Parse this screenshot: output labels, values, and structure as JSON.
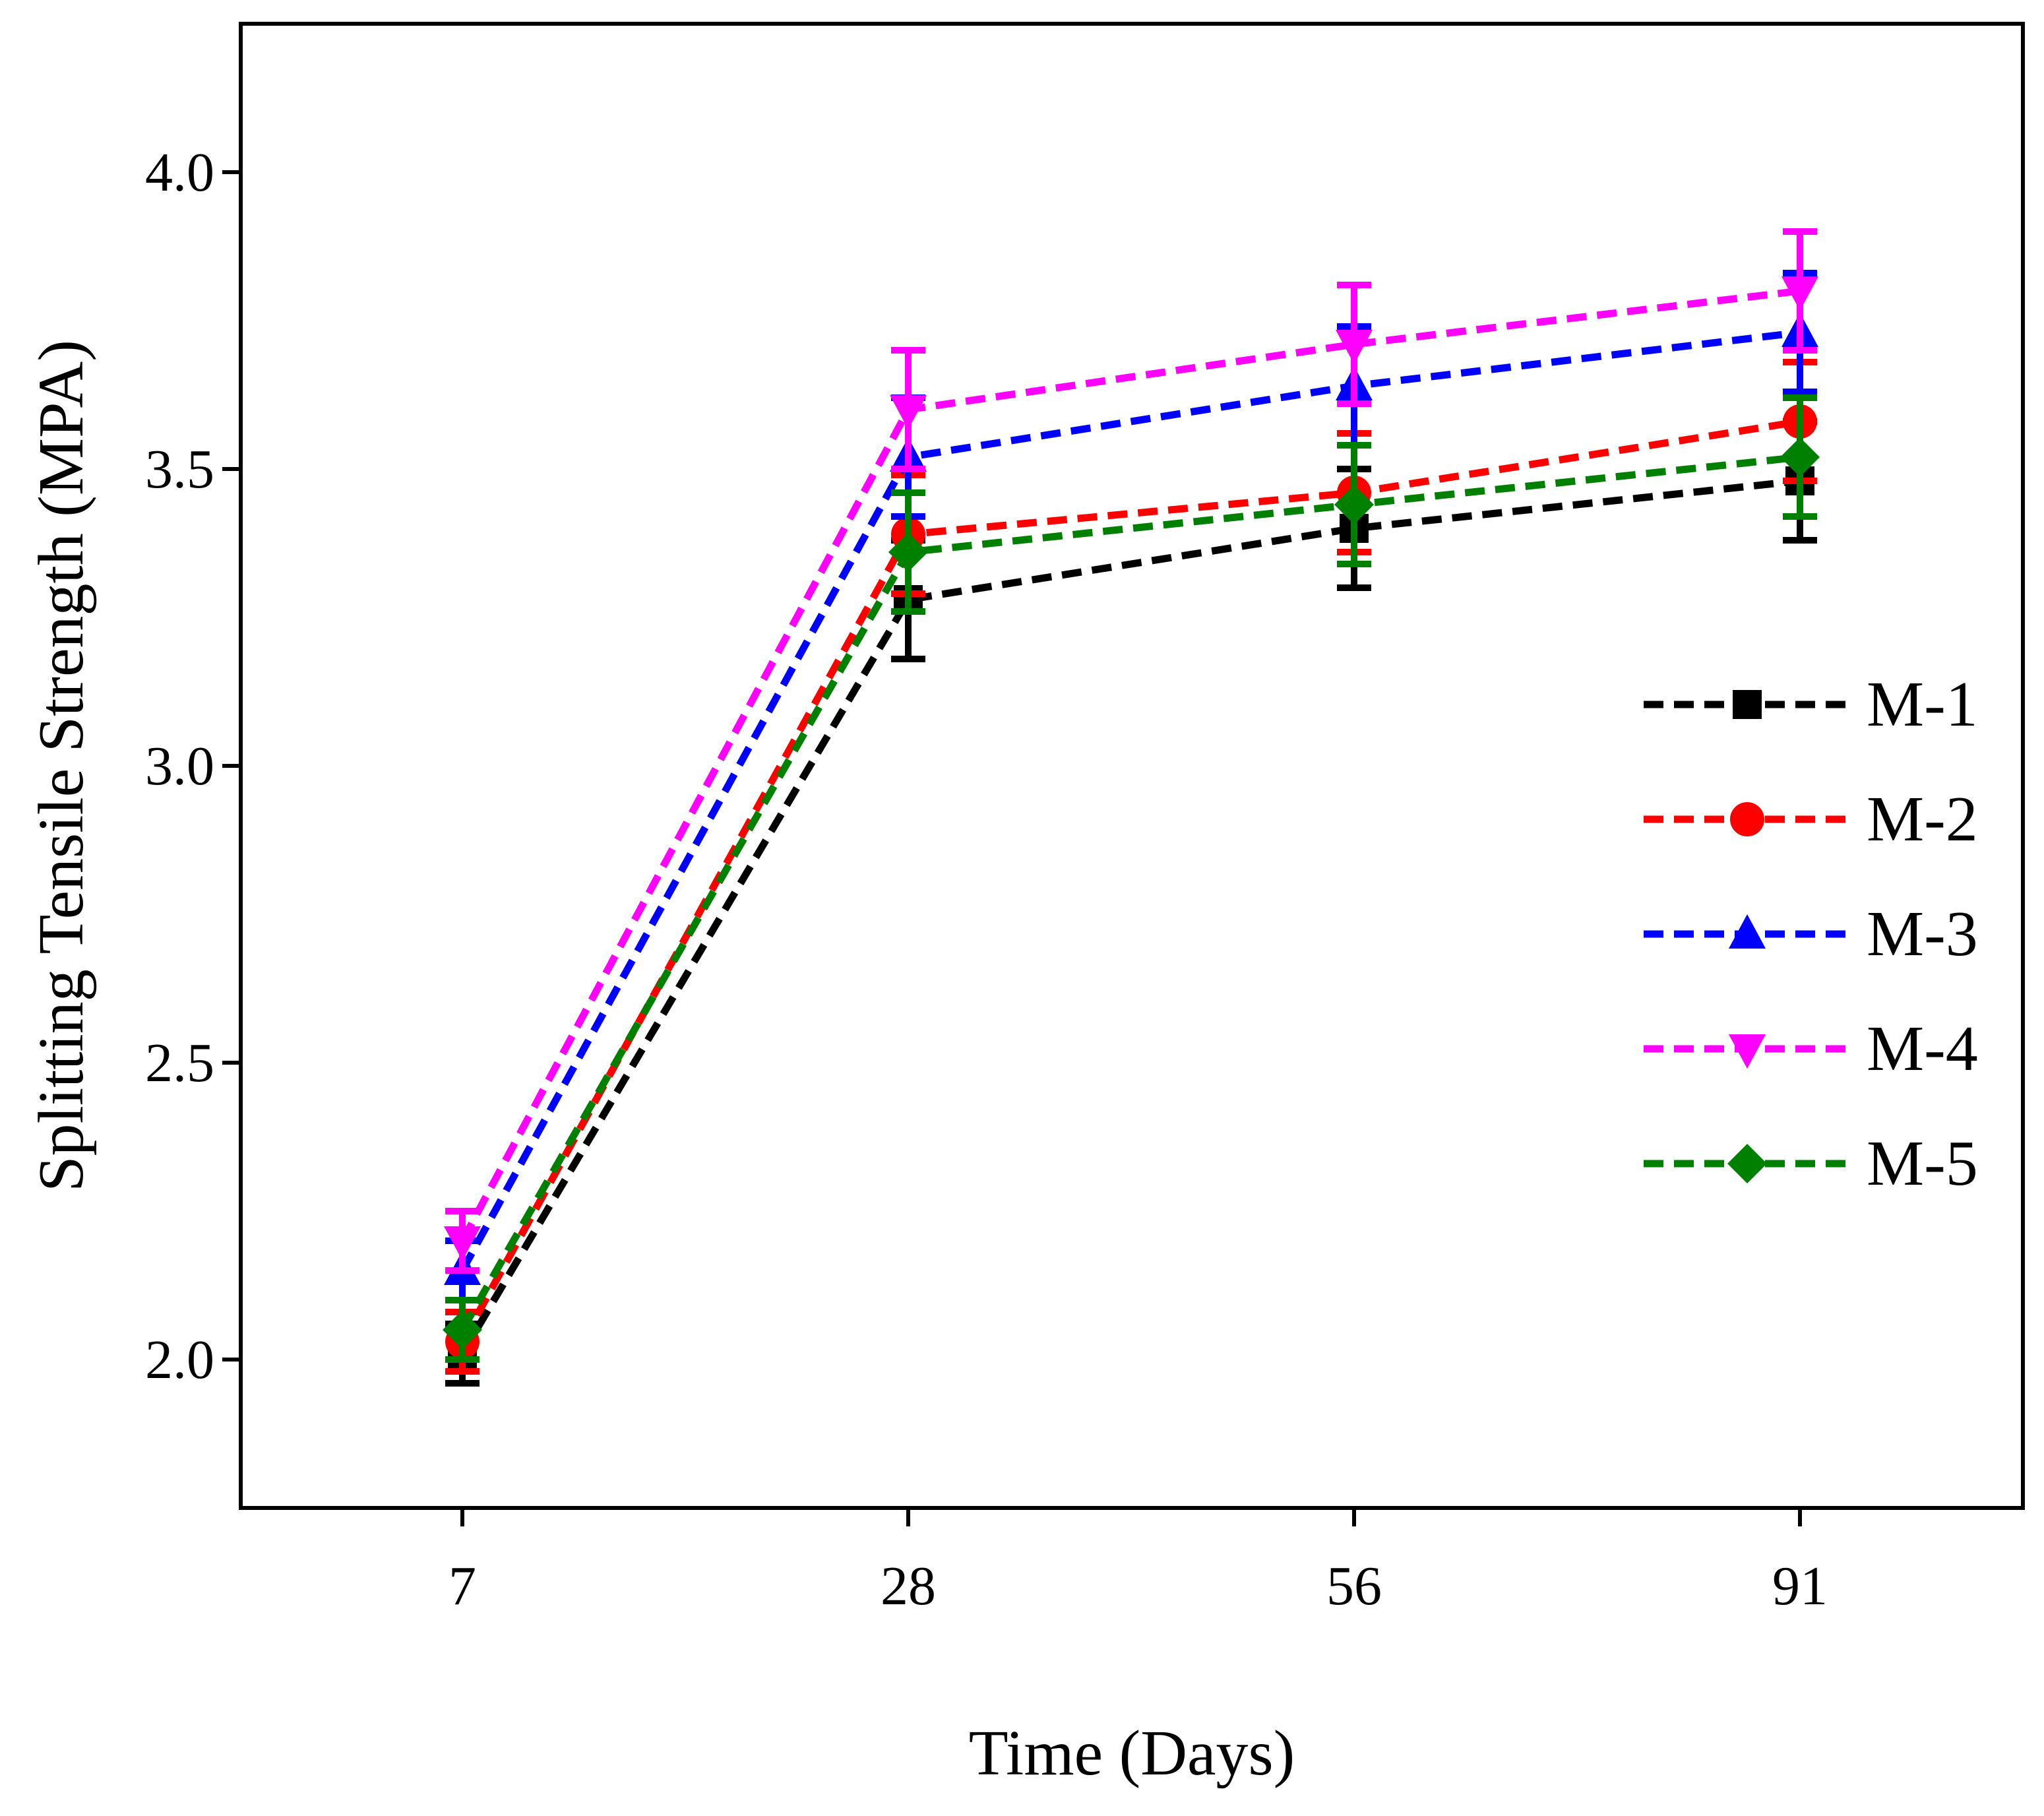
{
  "chart_data": {
    "type": "line",
    "title": "",
    "xlabel": "Time (Days)",
    "ylabel": "Splitting Tensile Strength (MPA)",
    "categories": [
      "7",
      "28",
      "56",
      "91"
    ],
    "ylim": [
      1.75,
      4.25
    ],
    "yticks": [
      2.0,
      2.5,
      3.0,
      3.5,
      4.0
    ],
    "ytick_labels": [
      "2.0",
      "2.5",
      "3.0",
      "3.5",
      "4.0"
    ],
    "grid": false,
    "legend_position": "right",
    "series": [
      {
        "name": "M-1",
        "color": "#000000",
        "marker": "square",
        "values": [
          2.01,
          3.28,
          3.4,
          3.48
        ],
        "errors": [
          0.05,
          0.1,
          0.1,
          0.1
        ]
      },
      {
        "name": "M-2",
        "color": "#ff0000",
        "marker": "circle",
        "values": [
          2.03,
          3.39,
          3.46,
          3.58
        ],
        "errors": [
          0.05,
          0.1,
          0.1,
          0.1
        ]
      },
      {
        "name": "M-3",
        "color": "#0000ff",
        "marker": "triangle-up",
        "values": [
          2.15,
          3.52,
          3.64,
          3.73
        ],
        "errors": [
          0.05,
          0.1,
          0.1,
          0.1
        ]
      },
      {
        "name": "M-4",
        "color": "#ff00ff",
        "marker": "triangle-down",
        "values": [
          2.2,
          3.6,
          3.71,
          3.8
        ],
        "errors": [
          0.05,
          0.1,
          0.1,
          0.1
        ]
      },
      {
        "name": "M-5",
        "color": "#008000",
        "marker": "diamond",
        "values": [
          2.05,
          3.36,
          3.44,
          3.52
        ],
        "errors": [
          0.05,
          0.1,
          0.1,
          0.1
        ]
      }
    ]
  }
}
